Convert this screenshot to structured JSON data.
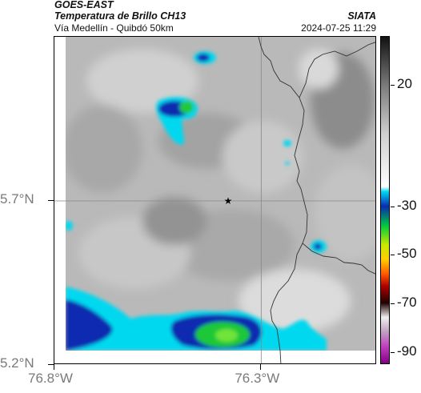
{
  "header": {
    "satellite": "GOES-EAST",
    "product": "Temperatura de Brillo CH13",
    "route": "Vía Medellín - Quibdó 50km",
    "organization": "SIATA",
    "datetime": "2024-07-25 11:29"
  },
  "axes": {
    "latitude_ticks": [
      {
        "label": "5.7°N",
        "value": 5.7
      },
      {
        "label": "5.2°N",
        "value": 5.2
      }
    ],
    "longitude_ticks": [
      {
        "label": "76.8°W",
        "value": -76.8
      },
      {
        "label": "76.3°W",
        "value": -76.3
      }
    ],
    "lat_range": [
      5.2,
      6.2
    ],
    "lon_range": [
      -76.8,
      -76.02
    ]
  },
  "colorbar": {
    "ticks": [
      {
        "label": "20",
        "value": 20
      },
      {
        "label": "-30",
        "value": -30
      },
      {
        "label": "-50",
        "value": -50
      },
      {
        "label": "-70",
        "value": -70
      },
      {
        "label": "-90",
        "value": -90
      }
    ],
    "range": [
      -95,
      40
    ],
    "stops": [
      {
        "value": 40,
        "color": "#111111"
      },
      {
        "value": 20,
        "color": "#7a7a7a"
      },
      {
        "value": 0,
        "color": "#cfcfcf"
      },
      {
        "value": -22,
        "color": "#ffffff"
      },
      {
        "value": -24,
        "color": "#00d8f0"
      },
      {
        "value": -30,
        "color": "#0a2bb0"
      },
      {
        "value": -38,
        "color": "#00c840"
      },
      {
        "value": -46,
        "color": "#c8e800"
      },
      {
        "value": -52,
        "color": "#ffd000"
      },
      {
        "value": -58,
        "color": "#ff5a00"
      },
      {
        "value": -63,
        "color": "#b00000"
      },
      {
        "value": -70,
        "color": "#200000"
      },
      {
        "value": -76,
        "color": "#f0f0f0"
      },
      {
        "value": -82,
        "color": "#c0a0c0"
      },
      {
        "value": -88,
        "color": "#c040c0"
      },
      {
        "value": -95,
        "color": "#800080"
      }
    ]
  },
  "map": {
    "marker_symbol": "★",
    "marker_lat": 5.7,
    "marker_lon": -76.38,
    "grid_lines": true,
    "colors": {
      "background_gray": "#b7b7b7",
      "cold_cloud_cyan": "#00d8f0",
      "deep_cloud_blue": "#0a2bb0",
      "very_cold_green": "#22c83a",
      "border_line": "#333333",
      "grid_line": "#888888"
    }
  }
}
